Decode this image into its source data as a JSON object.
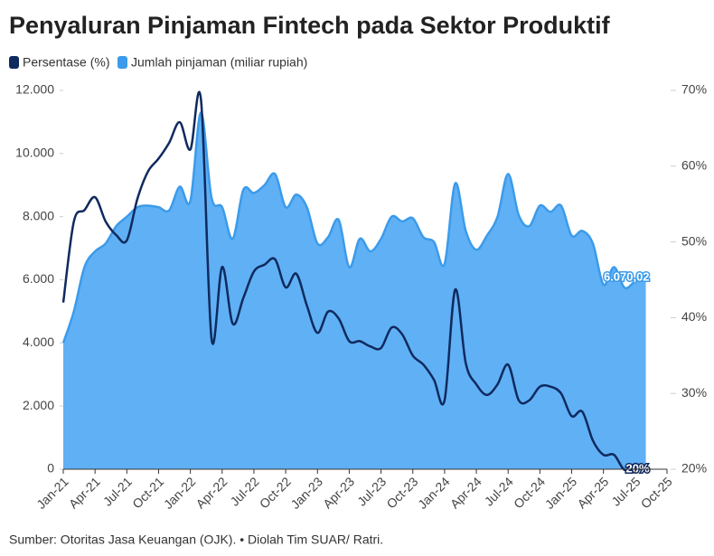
{
  "chart_data": {
    "type": "line-area",
    "title": "Penyaluran Pinjaman Fintech pada Sektor Produktif",
    "source": "Sumber: Otoritas Jasa Keuangan (OJK). • Diolah Tim SUAR/ Ratri.",
    "categories": [
      "Jan-21",
      null,
      null,
      "Apr-21",
      null,
      null,
      "Jul-21",
      null,
      null,
      "Oct-21",
      null,
      null,
      "Jan-22",
      null,
      null,
      "Apr-22",
      null,
      null,
      "Jul-22",
      null,
      null,
      "Oct-22",
      null,
      null,
      "Jan-23",
      null,
      null,
      "Apr-23",
      null,
      null,
      "Jul-23",
      null,
      null,
      "Oct-23",
      null,
      null,
      "Jan-24",
      null,
      null,
      "Apr-24",
      null,
      null,
      "Jul-24",
      null,
      null,
      "Oct-24",
      null,
      null,
      "Jan-25",
      null,
      null,
      "Apr-25",
      null,
      null,
      "Jul-25",
      null,
      null,
      "Oct-25"
    ],
    "series": [
      {
        "name": "Persentase (%)",
        "color": "#0f2a5e",
        "axis": "y2",
        "kind": "line",
        "values": [
          42,
          52.7,
          54.2,
          55.9,
          52.7,
          50.9,
          50.2,
          55.7,
          59.3,
          61,
          63.1,
          65.8,
          62.2,
          68.8,
          37.2,
          46.7,
          39.2,
          42.6,
          46.1,
          47,
          47.7,
          44,
          45.8,
          41.6,
          38,
          40.8,
          39.9,
          36.9,
          36.9,
          36.2,
          36,
          38.7,
          37.8,
          35,
          33.8,
          31.8,
          29.1,
          43.7,
          34,
          31.2,
          29.8,
          31.2,
          33.8,
          29.1,
          29.1,
          30.9,
          30.9,
          30,
          27,
          27.6,
          23.8,
          21.9,
          21.9,
          19.9,
          20.7,
          20,
          null,
          null
        ],
        "value_labels": [
          null,
          null,
          null,
          null,
          null,
          null,
          null,
          null,
          null,
          null,
          null,
          null,
          null,
          null,
          null,
          null,
          null,
          null,
          null,
          null,
          null,
          null,
          null,
          null,
          null,
          null,
          null,
          null,
          null,
          null,
          null,
          null,
          null,
          null,
          null,
          null,
          null,
          null,
          null,
          null,
          null,
          null,
          null,
          null,
          null,
          null,
          null,
          null,
          null,
          null,
          null,
          null,
          null,
          null,
          null,
          "20%",
          null,
          null
        ]
      },
      {
        "name": "Jumlah pinjaman (miliar rupiah)",
        "color": "#3b9bea",
        "kind": "area",
        "values": [
          4000,
          5000,
          6400,
          6900,
          7150,
          7700,
          8000,
          8300,
          8350,
          8300,
          8200,
          8950,
          8500,
          11300,
          8600,
          8300,
          7300,
          8850,
          8750,
          9000,
          9350,
          8300,
          8700,
          8300,
          7150,
          7350,
          7900,
          6400,
          7300,
          6900,
          7300,
          8000,
          7850,
          7950,
          7350,
          7200,
          6500,
          9050,
          7550,
          6950,
          7400,
          8000,
          9350,
          8050,
          7700,
          8350,
          8150,
          8350,
          7400,
          7550,
          7150,
          5850,
          6400,
          5750,
          5950,
          6070.02,
          null,
          null
        ],
        "value_labels": [
          null,
          null,
          null,
          null,
          null,
          null,
          null,
          null,
          null,
          null,
          null,
          null,
          null,
          null,
          null,
          null,
          null,
          null,
          null,
          null,
          null,
          null,
          null,
          null,
          null,
          null,
          null,
          null,
          null,
          null,
          null,
          null,
          null,
          null,
          null,
          null,
          null,
          null,
          null,
          null,
          null,
          null,
          null,
          null,
          null,
          null,
          null,
          null,
          null,
          null,
          null,
          null,
          null,
          null,
          null,
          "6.070,02",
          null,
          null
        ]
      }
    ],
    "ylim": [
      0,
      12000
    ],
    "yticks": [
      0,
      {
        "value": 2000,
        "label": "2.000"
      },
      {
        "value": 4000,
        "label": "4.000"
      },
      {
        "value": 6000,
        "label": "6.000"
      },
      {
        "value": 8000,
        "label": "8.000"
      },
      {
        "value": 10000,
        "label": "10.000"
      },
      {
        "value": 12000,
        "label": "12.000"
      }
    ],
    "y2lim": [
      20,
      70
    ],
    "y2ticks": [
      {
        "value": 20,
        "label": "20%"
      },
      {
        "value": 30,
        "label": "30%"
      },
      {
        "value": 40,
        "label": "40%"
      },
      {
        "value": 50,
        "label": "50%"
      },
      {
        "value": 60,
        "label": "60%"
      },
      {
        "value": 70,
        "label": "70%"
      }
    ]
  }
}
